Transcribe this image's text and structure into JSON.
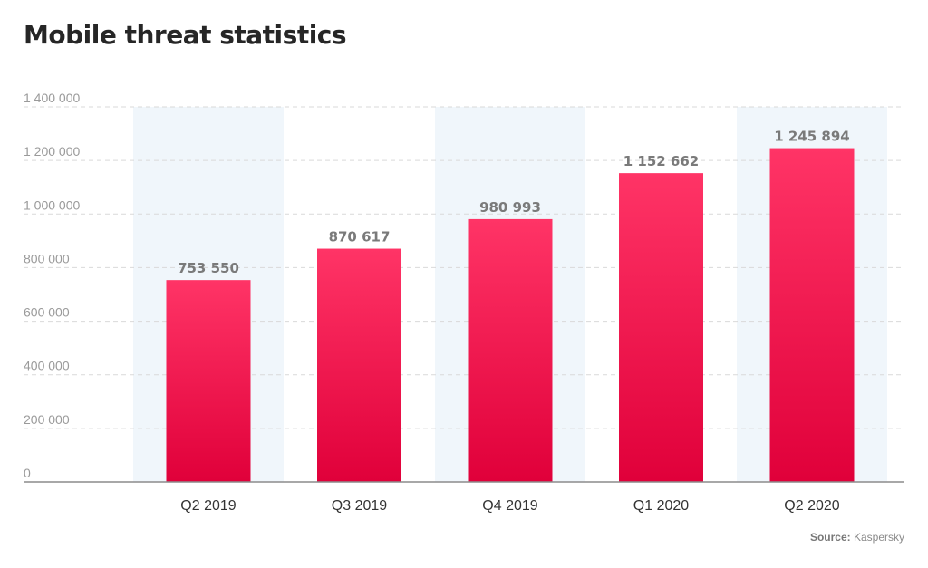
{
  "chart_data": {
    "type": "bar",
    "title": "Mobile threat statistics",
    "categories": [
      "Q2 2019",
      "Q3 2019",
      "Q4 2019",
      "Q1 2020",
      "Q2 2020"
    ],
    "values": [
      753550,
      870617,
      980993,
      1152662,
      1245894
    ],
    "value_labels": [
      "753 550",
      "870 617",
      "980 993",
      "1 152 662",
      "1 245 894"
    ],
    "ylim": [
      0,
      1400000
    ],
    "y_ticks": [
      0,
      200000,
      400000,
      600000,
      800000,
      1000000,
      1200000,
      1400000
    ],
    "y_tick_labels": [
      "0",
      "200 000",
      "400 000",
      "600 000",
      "800 000",
      "1 000 000",
      "1 200 000",
      "1 400 000"
    ],
    "grid": true,
    "alternating_band_color": "#f0f6fb",
    "bar_color_top": "#ff3466",
    "bar_color_bottom": "#e0003a",
    "xlabel": "",
    "ylabel": ""
  },
  "source": {
    "label": "Source:",
    "value": "Kaspersky"
  }
}
